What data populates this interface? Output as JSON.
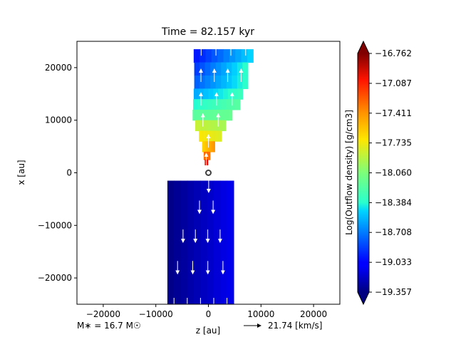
{
  "chart_data": {
    "type": "heatmap",
    "title": "Time = 82.157 kyr",
    "xlabel": "z [au]",
    "ylabel": "x [au]",
    "xlim": [
      -25000,
      25000
    ],
    "ylim": [
      -25000,
      25000
    ],
    "xticks": [
      {
        "value": -20000,
        "label": "−20000"
      },
      {
        "value": -10000,
        "label": "−10000"
      },
      {
        "value": 0,
        "label": "0"
      },
      {
        "value": 10000,
        "label": "10000"
      },
      {
        "value": 20000,
        "label": "20000"
      }
    ],
    "yticks": [
      {
        "value": 20000,
        "label": "20000"
      },
      {
        "value": 10000,
        "label": "10000"
      },
      {
        "value": 0,
        "label": "0"
      },
      {
        "value": -10000,
        "label": "−10000"
      },
      {
        "value": -20000,
        "label": "−20000"
      }
    ],
    "colorbar": {
      "label": "Log(Outflow density) [g/cm3]",
      "min": -19.357,
      "max": -16.762,
      "colormap": "jet",
      "extend": "both",
      "ticks": [
        {
          "value": -16.762,
          "label": "−16.762"
        },
        {
          "value": -17.087,
          "label": "−17.087"
        },
        {
          "value": -17.411,
          "label": "−17.411"
        },
        {
          "value": -17.735,
          "label": "−17.735"
        },
        {
          "value": -18.06,
          "label": "−18.060"
        },
        {
          "value": -18.384,
          "label": "−18.384"
        },
        {
          "value": -18.708,
          "label": "−18.708"
        },
        {
          "value": -19.033,
          "label": "−19.033"
        },
        {
          "value": -19.357,
          "label": "−19.357"
        }
      ]
    },
    "stellar_mass_label": "M∗ = 16.7 M☉",
    "velocity_key_label": "21.74 [km/s]",
    "grid": false,
    "upper_lobe": [
      {
        "x": 23500,
        "z": [
          -2800,
          8500
        ],
        "v": [
          -19.0,
          -18.45
        ]
      },
      {
        "x": 21000,
        "z": [
          -2700,
          7500
        ],
        "v": [
          -18.9,
          -18.35
        ]
      },
      {
        "x": 18500,
        "z": [
          -2700,
          7500
        ],
        "v": [
          -18.8,
          -18.35
        ]
      },
      {
        "x": 16000,
        "z": [
          -2800,
          6500
        ],
        "v": [
          -18.6,
          -18.3
        ]
      },
      {
        "x": 14000,
        "z": [
          -2900,
          6000
        ],
        "v": [
          -18.4,
          -18.2
        ]
      },
      {
        "x": 12000,
        "z": [
          -3000,
          4500
        ],
        "v": [
          -18.2,
          -18.15
        ]
      },
      {
        "x": 10000,
        "z": [
          -2500,
          3300
        ],
        "v": [
          -17.85,
          -17.95
        ]
      },
      {
        "x": 8000,
        "z": [
          -1800,
          2500
        ],
        "v": [
          -17.7,
          -17.8
        ]
      },
      {
        "x": 6000,
        "z": [
          -1200,
          1200
        ],
        "v": [
          -17.65,
          -17.4
        ]
      },
      {
        "x": 4000,
        "z": [
          -900,
          300
        ],
        "v": [
          -17.3,
          -17.3
        ]
      },
      {
        "x": 2500,
        "z": [
          -700,
          -100
        ],
        "v": [
          -17.0,
          -17.0
        ]
      }
    ],
    "lower_lobe": [
      {
        "x": -2500,
        "z": [
          -900,
          1000
        ],
        "v": [
          -17.1,
          -17.2
        ]
      },
      {
        "x": -4500,
        "z": [
          -1900,
          1600
        ],
        "v": [
          -17.7,
          -17.85
        ]
      },
      {
        "x": -6500,
        "z": [
          -3000,
          2200
        ],
        "v": [
          -18.25,
          -18.35
        ]
      },
      {
        "x": -9000,
        "z": [
          -4600,
          3000
        ],
        "v": [
          -18.6,
          -18.55
        ]
      },
      {
        "x": -12000,
        "z": [
          -6000,
          3400
        ],
        "v": [
          -18.8,
          -18.7
        ]
      },
      {
        "x": -15000,
        "z": [
          -6700,
          3800
        ],
        "v": [
          -19.05,
          -18.85
        ]
      },
      {
        "x": -18000,
        "z": [
          -7300,
          4200
        ],
        "v": [
          -19.2,
          -18.95
        ]
      },
      {
        "x": -21000,
        "z": [
          -7700,
          4500
        ],
        "v": [
          -19.3,
          -19.05
        ]
      },
      {
        "x": -25000,
        "z": [
          -7800,
          4800
        ],
        "v": [
          -19.35,
          -19.1
        ]
      }
    ],
    "star_position": {
      "x": 0,
      "z": 0
    }
  }
}
